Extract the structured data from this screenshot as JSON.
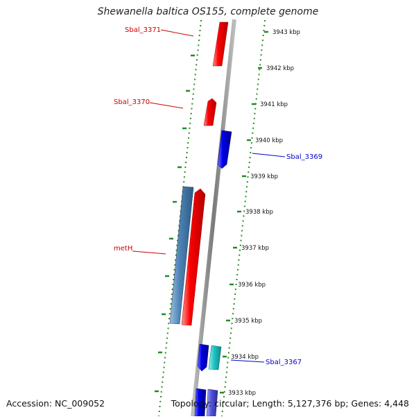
{
  "title": "Shewanella baltica OS155, complete genome",
  "footer": {
    "accession": "Accession: NC_009052",
    "summary": "Topology: circular; Length: 5,127,376 bp; Genes: 4,448"
  },
  "colors": {
    "forward_gene": "#ff0000",
    "reverse_gene": "#0000ee",
    "steelblue_gene": "#4f84b6",
    "cyan_gene": "#22c8c8",
    "backbone": "#8a8a8a",
    "tick_dots": "#228b22",
    "label_red": "#cc0000",
    "label_blue": "#0000cc"
  },
  "scale": {
    "ticks": [
      {
        "label": "3943 kbp"
      },
      {
        "label": "3942 kbp"
      },
      {
        "label": "3941 kbp"
      },
      {
        "label": "3940 kbp"
      },
      {
        "label": "3939 kbp"
      },
      {
        "label": "3938 kbp"
      },
      {
        "label": "3937 kbp"
      },
      {
        "label": "3936 kbp"
      },
      {
        "label": "3935 kbp"
      },
      {
        "label": "3934 kbp"
      },
      {
        "label": "3933 kbp"
      }
    ]
  },
  "gene_labels": [
    {
      "text": "Sbal_3371",
      "color": "label_red"
    },
    {
      "text": "Sbal_3370",
      "color": "label_red"
    },
    {
      "text": "Sbal_3369",
      "color": "label_blue"
    },
    {
      "text": "metH",
      "color": "label_red"
    },
    {
      "text": "Sbal_3367",
      "color": "label_blue"
    }
  ]
}
